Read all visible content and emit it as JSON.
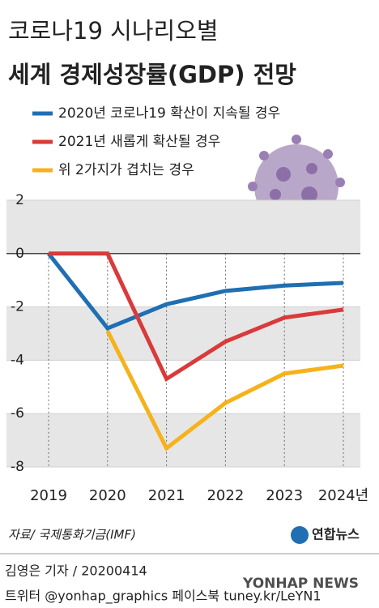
{
  "chart_data": {
    "type": "line",
    "title": "코로나19 시나리오별",
    "subtitle": "세계 경제성장률(GDP) 전망",
    "categories": [
      "2019",
      "2020",
      "2021",
      "2022",
      "2023",
      "2024년"
    ],
    "series": [
      {
        "name": "2020년 코로나19 확산이 지속될 경우",
        "color": "#1f6fb2",
        "values": [
          0,
          -2.8,
          -1.9,
          -1.4,
          -1.2,
          -1.1
        ]
      },
      {
        "name": "2021년 새롭게 확산될 경우",
        "color": "#d93a3a",
        "values": [
          0,
          0,
          -4.7,
          -3.3,
          -2.4,
          -2.1
        ]
      },
      {
        "name": "위 2가지가 겹치는 경우",
        "color": "#f6b21b",
        "values": [
          null,
          -2.9,
          -7.3,
          -5.6,
          -4.5,
          -4.2
        ]
      }
    ],
    "ylim": [
      2,
      -8
    ],
    "yticks": [
      2,
      0,
      -2,
      -4,
      -6,
      -8
    ],
    "source": "자료/ 국제통화기금(IMF)",
    "logo": "연합뉴스",
    "byline": "김영은 기자 / 20200414",
    "social": "트위터 @yonhap_graphics  페이스북 tuney.kr/LeYN1",
    "watermark": "YONHAP NEWS"
  }
}
